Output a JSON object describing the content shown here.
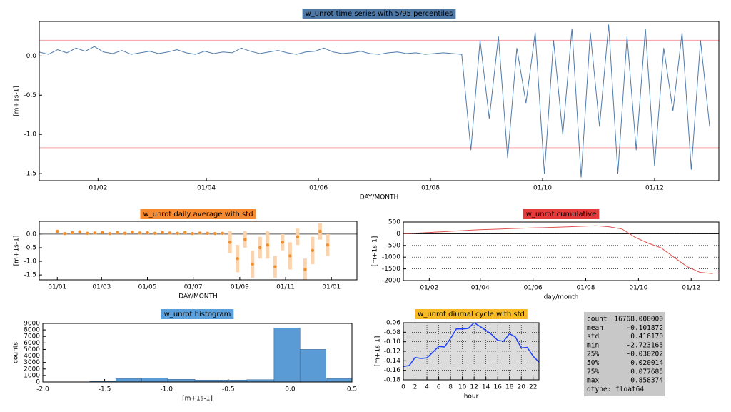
{
  "chart_data": [
    {
      "type": "line",
      "title": "w_unrot time series with 5/95 percentiles",
      "title_color": "#4e79a7",
      "xlabel": "DAY/MONTH",
      "ylabel": "[m+1s-1]",
      "color": "#4f7bab",
      "xlim": [
        0,
        370
      ],
      "ylim": [
        -1.59,
        0.44
      ],
      "xticks": [
        {
          "value": 32,
          "label": "01/02"
        },
        {
          "value": 91,
          "label": "01/04"
        },
        {
          "value": 152,
          "label": "01/06"
        },
        {
          "value": 213,
          "label": "01/08"
        },
        {
          "value": 274,
          "label": "01/10"
        },
        {
          "value": 335,
          "label": "01/12"
        }
      ],
      "yticks": [
        {
          "value": 0,
          "label": "0.0"
        },
        -0.5,
        {
          "value": -1,
          "label": "-1.0"
        },
        -1.5
      ],
      "reference_lines": [
        {
          "value": 0.2,
          "color": "#f4a0a0"
        },
        {
          "value": -1.17,
          "color": "#f4a0a0"
        }
      ],
      "x": [
        0,
        5,
        10,
        15,
        20,
        25,
        30,
        35,
        40,
        45,
        50,
        55,
        60,
        65,
        70,
        75,
        80,
        85,
        90,
        95,
        100,
        105,
        110,
        115,
        120,
        125,
        130,
        135,
        140,
        145,
        150,
        155,
        160,
        165,
        170,
        175,
        180,
        185,
        190,
        195,
        200,
        205,
        210,
        215,
        220,
        225,
        230,
        235,
        240,
        245,
        250,
        255,
        260,
        265,
        270,
        275,
        280,
        285,
        290,
        295,
        300,
        305,
        310,
        315,
        320,
        325,
        330,
        335,
        340,
        345,
        350,
        355,
        360,
        365
      ],
      "values": [
        0.05,
        0.02,
        0.08,
        0.04,
        0.1,
        0.06,
        0.12,
        0.05,
        0.03,
        0.07,
        0.02,
        0.04,
        0.06,
        0.03,
        0.05,
        0.08,
        0.04,
        0.02,
        0.06,
        0.03,
        0.05,
        0.04,
        0.1,
        0.06,
        0.03,
        0.05,
        0.07,
        0.04,
        0.02,
        0.05,
        0.06,
        0.1,
        0.05,
        0.03,
        0.04,
        0.06,
        0.03,
        0.02,
        0.04,
        0.05,
        0.03,
        0.04,
        0.02,
        0.03,
        0.04,
        0.03,
        0.02,
        -1.2,
        0.2,
        -0.8,
        0.25,
        -1.3,
        0.1,
        -0.6,
        0.3,
        -1.5,
        0.2,
        -1.0,
        0.35,
        -1.55,
        0.3,
        -0.9,
        0.4,
        -1.5,
        0.25,
        -1.2,
        0.35,
        -1.4,
        0.1,
        -0.7,
        0.3,
        -1.45,
        0.2,
        -0.9
      ]
    },
    {
      "type": "scatter",
      "title": "w_unrot daily average with std",
      "title_color": "#f58a30",
      "xlabel": "DAY/MONTH",
      "ylabel": "[m+1s-1]",
      "color": "#f28e2b",
      "error_color": "#fbd3ad",
      "xlim": [
        -24,
        399
      ],
      "ylim": [
        -1.68,
        0.47
      ],
      "xticks": [
        {
          "value": 0,
          "label": "01/01"
        },
        {
          "value": 59,
          "label": "01/03"
        },
        {
          "value": 120,
          "label": "01/05"
        },
        {
          "value": 181,
          "label": "01/07"
        },
        {
          "value": 243,
          "label": "01/09"
        },
        {
          "value": 304,
          "label": "01/11"
        },
        {
          "value": 365,
          "label": "01/01"
        }
      ],
      "yticks": [
        {
          "value": 0,
          "label": "0.0"
        },
        -0.5,
        {
          "value": -1,
          "label": "-1.0"
        },
        -1.5
      ],
      "reference_lines": [
        {
          "value": 0,
          "color": "#555555"
        }
      ],
      "x": [
        0,
        10,
        20,
        30,
        40,
        50,
        60,
        70,
        80,
        90,
        100,
        110,
        120,
        130,
        140,
        150,
        160,
        170,
        180,
        190,
        200,
        210,
        220,
        230,
        240,
        250,
        260,
        270,
        280,
        290,
        300,
        310,
        320,
        330,
        340,
        350,
        360
      ],
      "values": [
        0.1,
        0.02,
        0.05,
        0.08,
        0.03,
        0.04,
        0.06,
        0.02,
        0.05,
        0.03,
        0.07,
        0.04,
        0.05,
        0.03,
        0.06,
        0.04,
        0.03,
        0.05,
        0.02,
        0.04,
        0.03,
        0.02,
        0.03,
        -0.3,
        -0.9,
        -0.2,
        -1.1,
        -0.5,
        -0.4,
        -1.2,
        -0.3,
        -0.8,
        -0.1,
        -1.3,
        -0.6,
        0.1,
        -0.4
      ],
      "errors": [
        0.06,
        0.05,
        0.05,
        0.06,
        0.05,
        0.05,
        0.05,
        0.04,
        0.05,
        0.05,
        0.06,
        0.05,
        0.05,
        0.04,
        0.05,
        0.05,
        0.04,
        0.05,
        0.04,
        0.05,
        0.05,
        0.04,
        0.05,
        0.4,
        0.5,
        0.3,
        0.5,
        0.4,
        0.5,
        0.4,
        0.3,
        0.5,
        0.3,
        0.4,
        0.5,
        0.3,
        0.4
      ]
    },
    {
      "type": "line",
      "title": "w_unrot cumulative",
      "title_color": "#e63b3b",
      "xlabel": "day/month",
      "ylabel": "[m+1s-1]",
      "color": "#e05050",
      "grid": "y",
      "xlim": [
        2,
        367
      ],
      "ylim": [
        -2000,
        500
      ],
      "xticks": [
        {
          "value": 32,
          "label": "01/02"
        },
        {
          "value": 91,
          "label": "01/04"
        },
        {
          "value": 152,
          "label": "01/06"
        },
        {
          "value": 213,
          "label": "01/08"
        },
        {
          "value": 274,
          "label": "01/10"
        },
        {
          "value": 335,
          "label": "01/12"
        }
      ],
      "yticks": [
        500,
        0,
        -500,
        -1000,
        -1500,
        -2000
      ],
      "reference_lines": [
        {
          "value": 0,
          "color": "#000000"
        }
      ],
      "x": [
        0,
        15,
        30,
        45,
        60,
        75,
        90,
        105,
        120,
        135,
        150,
        165,
        180,
        195,
        210,
        225,
        240,
        255,
        270,
        285,
        300,
        315,
        330,
        345,
        360
      ],
      "values": [
        0,
        20,
        50,
        80,
        110,
        140,
        170,
        190,
        210,
        230,
        250,
        260,
        280,
        300,
        320,
        340,
        300,
        200,
        -150,
        -400,
        -600,
        -1000,
        -1400,
        -1650,
        -1700
      ]
    },
    {
      "type": "histogram",
      "title": "w_unrot histogram",
      "title_color": "#5aa0dc",
      "xlabel": "[m+1s-1]",
      "ylabel": "counts",
      "color": "#5b9bd5",
      "xlim": [
        -2,
        0.5
      ],
      "ylim": [
        0,
        9000
      ],
      "xticks": [
        {
          "value": -2,
          "label": "-2.0"
        },
        -1.5,
        {
          "value": -1,
          "label": "-1.0"
        },
        -0.5,
        {
          "value": 0,
          "label": "0.0"
        },
        0.5
      ],
      "yticks": [
        0,
        1000,
        2000,
        3000,
        4000,
        5000,
        6000,
        7000,
        8000,
        9000
      ],
      "bins": [
        -1.62,
        -1.41,
        -1.2,
        -0.99,
        -0.77,
        -0.56,
        -0.35,
        -0.13,
        0.08,
        0.29,
        0.5
      ],
      "counts": [
        100,
        500,
        600,
        400,
        300,
        300,
        350,
        8300,
        5000,
        500
      ]
    },
    {
      "type": "line",
      "title": "w_unrot diurnal cycle with std",
      "title_color": "#f7b924",
      "xlabel": "hour",
      "ylabel": "[m+1s-1]",
      "color": "#1f3fff",
      "grid": "xy",
      "background": "#dcdcdc",
      "xlim": [
        0,
        23
      ],
      "ylim": [
        -0.18,
        -0.06
      ],
      "xticks": [
        0,
        2,
        4,
        6,
        8,
        10,
        12,
        14,
        16,
        18,
        20,
        22
      ],
      "yticks": [
        -0.06,
        -0.08,
        {
          "value": -0.1,
          "label": "-0.10"
        },
        -0.12,
        -0.14,
        -0.16,
        -0.18
      ],
      "x": [
        0,
        1,
        2,
        3,
        4,
        5,
        6,
        7,
        8,
        9,
        10,
        11,
        12,
        13,
        14,
        15,
        16,
        17,
        18,
        19,
        20,
        21,
        22,
        23
      ],
      "values": [
        -0.152,
        -0.15,
        -0.133,
        -0.135,
        -0.134,
        -0.122,
        -0.11,
        -0.111,
        -0.093,
        -0.073,
        -0.073,
        -0.072,
        -0.06,
        -0.068,
        -0.076,
        -0.085,
        -0.097,
        -0.099,
        -0.083,
        -0.09,
        -0.113,
        -0.112,
        -0.13,
        -0.143
      ]
    }
  ],
  "stats": {
    "rows": [
      [
        "count",
        "16768.000000"
      ],
      [
        "mean",
        "-0.101872"
      ],
      [
        "std",
        "0.416170"
      ],
      [
        "min",
        "-2.723165"
      ],
      [
        "25%",
        "-0.030202"
      ],
      [
        "50%",
        "0.020014"
      ],
      [
        "75%",
        "0.077685"
      ],
      [
        "max",
        "0.858374"
      ]
    ],
    "footer": "dtype: float64"
  }
}
